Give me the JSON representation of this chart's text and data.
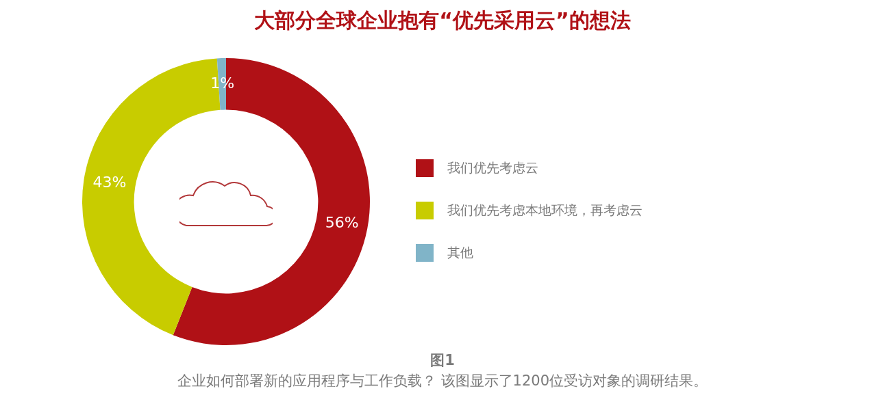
{
  "chart_data": {
    "type": "donut",
    "title": "大部分全球企业抱有“优先采用云”的想法",
    "categories": [
      "我们优先考虑云",
      "我们优先考虑本地环境，再考虑云",
      "其他"
    ],
    "values": [
      56,
      43,
      1
    ],
    "colors": [
      "#b01116",
      "#c8cc00",
      "#80b4c8"
    ],
    "value_labels": [
      "56%",
      "43%",
      "1%"
    ],
    "legend": "right",
    "annotations": [
      "图1",
      "企业如何部署新的应用程序与工作负载？ 该图显示了1200位受访对象的调研结果。"
    ]
  }
}
